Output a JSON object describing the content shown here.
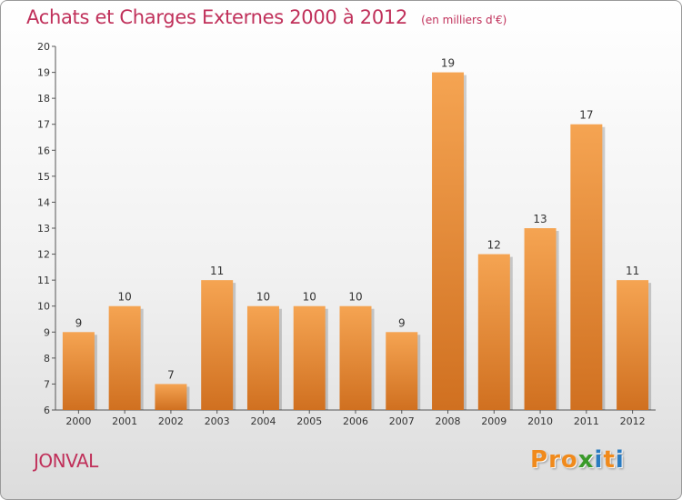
{
  "header": {
    "title": "Achats et Charges Externes 2000 à 2012",
    "unit": "(en milliers d'€)"
  },
  "footer": {
    "place": "JONVAL",
    "logo": [
      "P",
      "r",
      "o",
      "x",
      "i",
      "t",
      "i"
    ]
  },
  "colors": {
    "title": "#c0305a",
    "bar_light": "#f5a452",
    "bar_dark": "#d07020",
    "logo": [
      "#f08a1c",
      "#f08a1c",
      "#f08a1c",
      "#3a9a2a",
      "#2a7bc0",
      "#f08a1c",
      "#2a7bc0"
    ]
  },
  "chart_data": {
    "type": "bar",
    "title": "Achats et Charges Externes 2000 à 2012",
    "subtitle": "(en milliers d'€)",
    "categories": [
      "2000",
      "2001",
      "2002",
      "2003",
      "2004",
      "2005",
      "2006",
      "2007",
      "2008",
      "2009",
      "2010",
      "2011",
      "2012"
    ],
    "values": [
      9,
      10,
      7,
      11,
      10,
      10,
      10,
      9,
      19,
      12,
      13,
      17,
      11
    ],
    "ylim": [
      6,
      20
    ],
    "yticks": [
      6,
      7,
      8,
      9,
      10,
      11,
      12,
      13,
      14,
      15,
      16,
      17,
      18,
      19,
      20
    ],
    "xlabel": "",
    "ylabel": "",
    "grid": false,
    "legend": "none",
    "data_labels": true
  }
}
